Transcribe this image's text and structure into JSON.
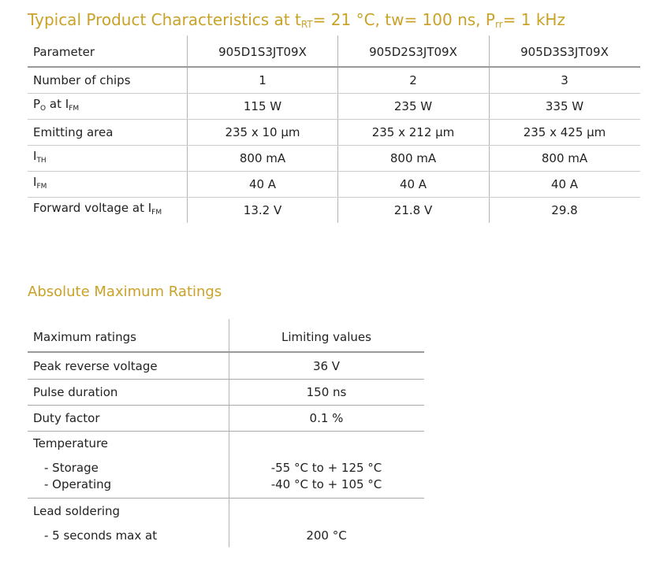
{
  "typical": {
    "title": [
      "Typical Product Characteristics at t",
      "RT",
      "= 21 °C, tw= 100 ns, P",
      "rr",
      "= 1 kHz"
    ],
    "header": [
      "Parameter",
      "905D1S3JT09X",
      "905D2S3JT09X",
      "905D3S3JT09X"
    ],
    "rows": [
      [
        [
          "Number of chips"
        ],
        "1",
        "2",
        "3"
      ],
      [
        [
          "P",
          "O",
          " at I",
          "FM"
        ],
        "115 W",
        "235 W",
        "335 W"
      ],
      [
        [
          "Emitting area"
        ],
        "235 x 10 µm",
        "235 x 212 µm",
        "235 x 425 µm"
      ],
      [
        [
          "I",
          "TH"
        ],
        "800 mA",
        "800 mA",
        "800 mA"
      ],
      [
        [
          "I",
          "FM"
        ],
        "40 A",
        "40 A",
        "40 A"
      ],
      [
        [
          "Forward voltage at I",
          "FM"
        ],
        "13.2 V",
        "21.8 V",
        "29.8"
      ]
    ]
  },
  "absolute": {
    "title": "Absolute Maximum Ratings",
    "header": [
      "Maximum ratings",
      "Limiting values"
    ],
    "rows": [
      [
        "Peak reverse voltage",
        "36 V"
      ],
      [
        "Pulse duration",
        "150 ns"
      ],
      [
        "Duty factor",
        "0.1 %"
      ]
    ],
    "groups": [
      {
        "label": "Temperature",
        "items": [
          [
            "- Storage",
            "-55 °C to + 125 °C"
          ],
          [
            "- Operating",
            "-40 °C to + 105 °C"
          ]
        ]
      },
      {
        "label": "Lead soldering",
        "items": [
          [
            "- 5 seconds max at",
            "200 °C"
          ]
        ]
      }
    ]
  }
}
